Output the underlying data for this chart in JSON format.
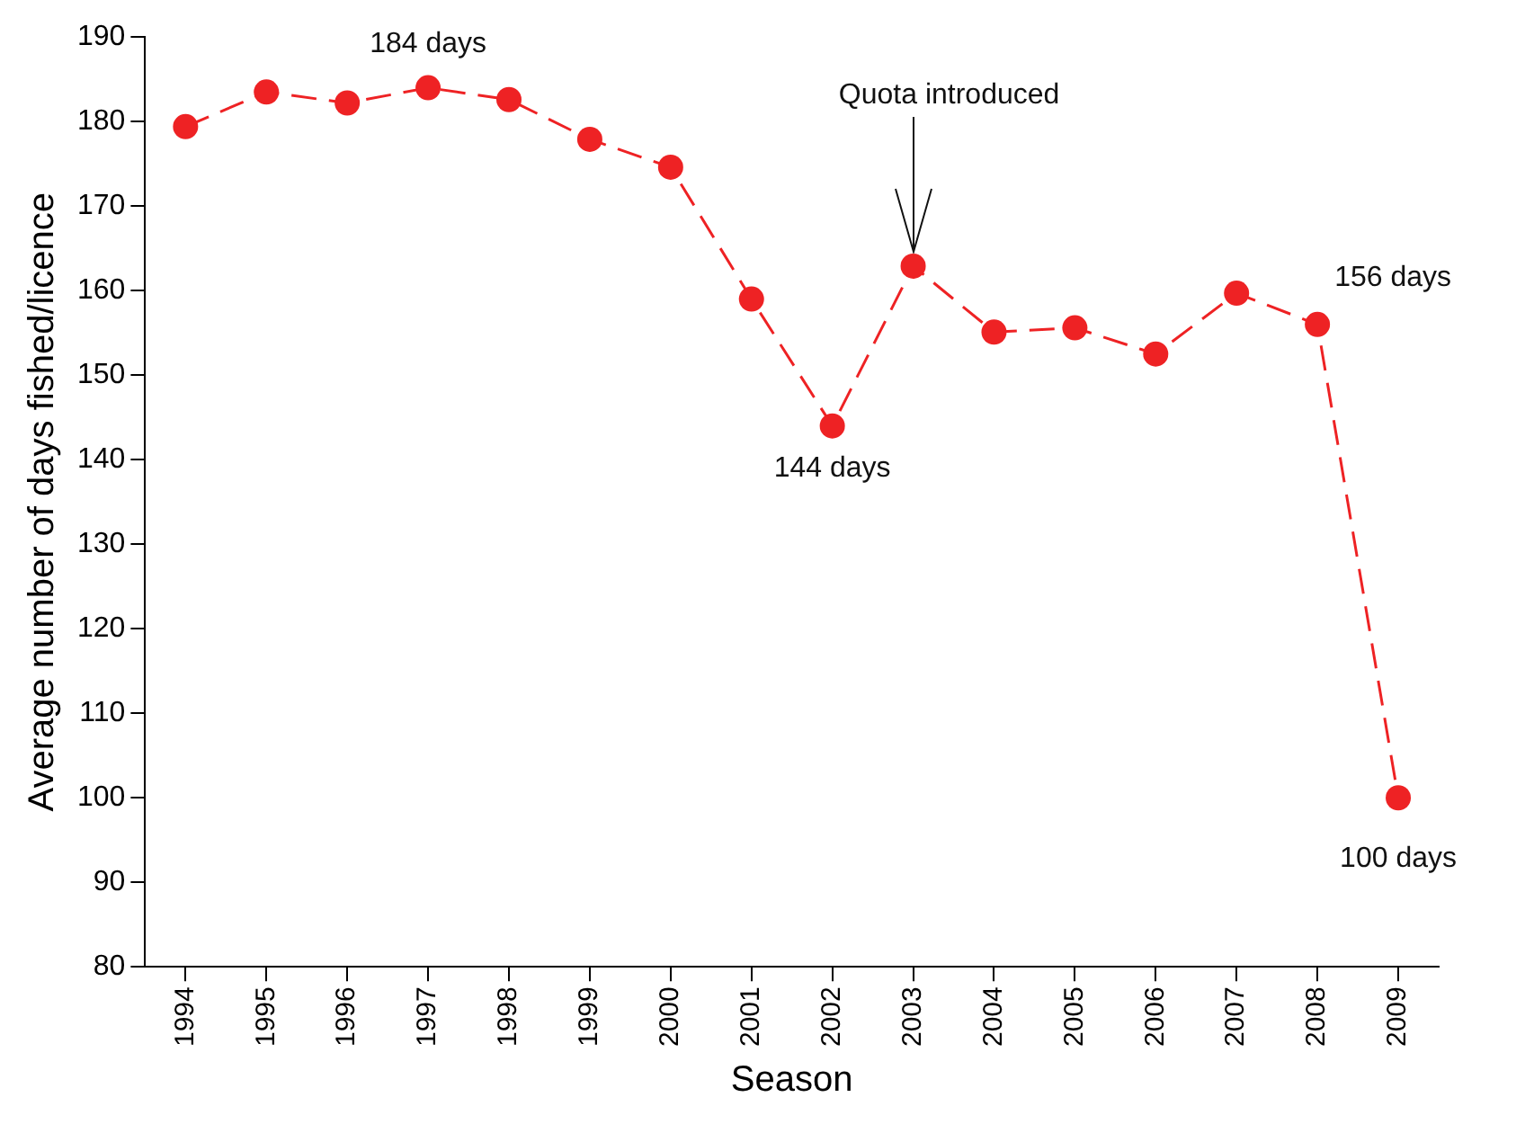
{
  "chart_data": {
    "type": "line",
    "xlabel": "Season",
    "ylabel": "Average number of days fished/licence",
    "categories": [
      "1994",
      "1995",
      "1996",
      "1997",
      "1998",
      "1999",
      "2000",
      "2001",
      "2002",
      "2003",
      "2004",
      "2005",
      "2006",
      "2007",
      "2008",
      "2009"
    ],
    "series": [
      {
        "color": "#ee2224",
        "values": [
          179.4,
          183.5,
          182.2,
          184,
          182.6,
          177.9,
          174.6,
          159.0,
          144,
          162.9,
          155.1,
          155.6,
          152.5,
          159.7,
          156,
          100
        ]
      }
    ],
    "ylim": [
      80,
      190
    ],
    "yticks": [
      80,
      90,
      100,
      110,
      120,
      130,
      140,
      150,
      160,
      170,
      180,
      190
    ],
    "annotations": [
      {
        "text": "184 days",
        "x": "1997",
        "y": 184
      },
      {
        "text": "Quota introduced",
        "x": "2003",
        "y": 162.9
      },
      {
        "text": "144 days",
        "x": "2002",
        "y": 144
      },
      {
        "text": "156 days",
        "x": "2008",
        "y": 156
      },
      {
        "text": "100 days",
        "x": "2009",
        "y": 100
      }
    ],
    "grid": false,
    "legend": false,
    "marker": "circle",
    "line_style": "dashed"
  }
}
